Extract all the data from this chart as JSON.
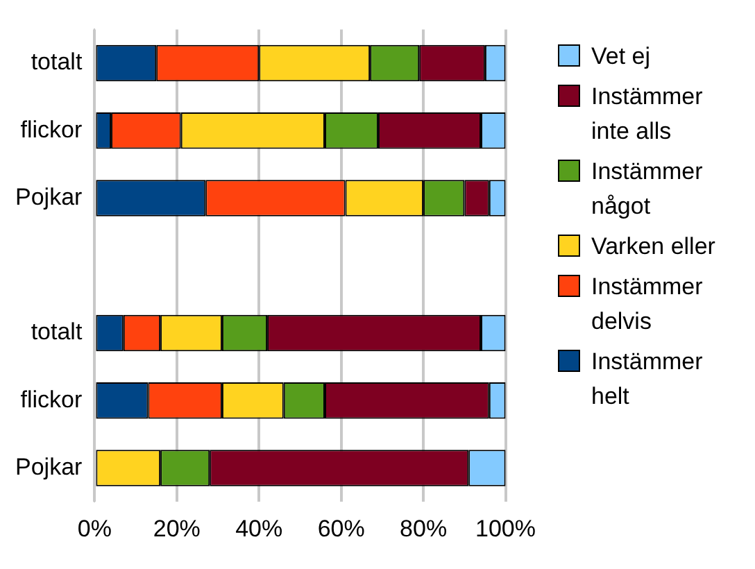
{
  "chart_data": {
    "type": "bar",
    "orientation": "horizontal",
    "stacked": true,
    "categories": [
      "totalt",
      "flickor",
      "Pojkar",
      null,
      "totalt",
      "flickor",
      "Pojkar"
    ],
    "series": [
      {
        "name": "Instämmer helt",
        "color": "#004586",
        "values": [
          15,
          4,
          27,
          null,
          7,
          13,
          0
        ]
      },
      {
        "name": "Instämmer delvis",
        "color": "#ff420e",
        "values": [
          25,
          17,
          34,
          null,
          9,
          18,
          0
        ]
      },
      {
        "name": "Varken eller",
        "color": "#ffd320",
        "values": [
          27,
          35,
          19,
          null,
          15,
          15,
          16
        ]
      },
      {
        "name": "Instämmer något",
        "color": "#579d1c",
        "values": [
          12,
          13,
          10,
          null,
          11,
          10,
          12
        ]
      },
      {
        "name": "Instämmer inte alls",
        "color": "#7e0021",
        "values": [
          16,
          25,
          6,
          null,
          52,
          40,
          63
        ]
      },
      {
        "name": "Vet ej",
        "color": "#83caff",
        "values": [
          5,
          6,
          4,
          null,
          6,
          4,
          9
        ]
      }
    ],
    "xlim": [
      0,
      100
    ],
    "xticks": [
      {
        "value": 0,
        "label": "0%"
      },
      {
        "value": 20,
        "label": "20%"
      },
      {
        "value": 40,
        "label": "40%"
      },
      {
        "value": 60,
        "label": "60%"
      },
      {
        "value": 80,
        "label": "80%"
      },
      {
        "value": 100,
        "label": "100%"
      }
    ],
    "grid": "x",
    "legend": "right"
  }
}
